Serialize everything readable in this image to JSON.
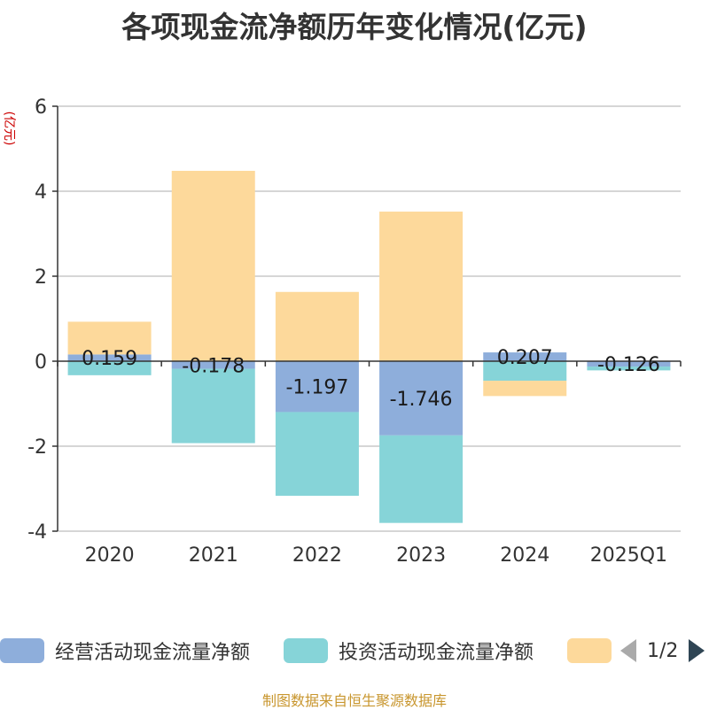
{
  "chart_data": {
    "type": "bar",
    "stacked": true,
    "title": "各项现金流净额历年变化情况(亿元)",
    "ylabel": "(亿元)",
    "xlabel": "",
    "ylim": [
      -4,
      6
    ],
    "yticks": [
      6,
      4,
      2,
      0,
      -2,
      -4
    ],
    "grid": true,
    "categories": [
      "2020",
      "2021",
      "2022",
      "2023",
      "2024",
      "2025Q1"
    ],
    "series": [
      {
        "name": "经营活动现金流量净额",
        "color": "#8eaedb",
        "values": [
          0.159,
          -0.178,
          -1.197,
          -1.746,
          0.207,
          -0.126
        ],
        "labels": [
          "0.159",
          "-0.178",
          "-1.197",
          "-1.746",
          "0.207",
          "-0.126"
        ]
      },
      {
        "name": "投资活动现金流量净额",
        "color": "#86d4d8",
        "values": [
          -0.33,
          -1.75,
          -1.97,
          -2.06,
          -0.46,
          -0.09
        ]
      },
      {
        "name": "",
        "color": "#fdd99b",
        "values": [
          0.77,
          4.48,
          1.63,
          3.52,
          -0.36,
          0
        ]
      }
    ],
    "legend_position": "bottom"
  },
  "legend": {
    "items": [
      "经营活动现金流量净额",
      "投资活动现金流量净额"
    ],
    "page_text": "1/2"
  },
  "source": "制图数据来自恒生聚源数据库"
}
